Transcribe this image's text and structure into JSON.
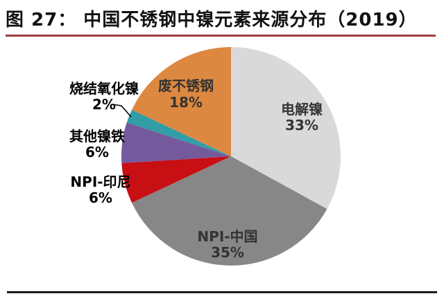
{
  "header": {
    "title": "图 27：  中国不锈钢中镍元素来源分布（2019）"
  },
  "colors": {
    "title_underline": "#9e3b3e",
    "bottom_rule": "#1a1a1a",
    "inside_label_text": "#333333",
    "outside_label_text": "#000000",
    "leader_line": "#000000",
    "background": "#ffffff"
  },
  "chart_data": {
    "type": "pie",
    "title": "中国不锈钢中镍元素来源分布（2019）",
    "start_angle_deg": 0,
    "direction": "clockwise",
    "legend_position": "none",
    "slices": [
      {
        "label": "电解镍",
        "value": 33,
        "pct_label": "33%",
        "color": "#d9d9d9",
        "label_placement": "inside"
      },
      {
        "label": "NPI-中国",
        "value": 35,
        "pct_label": "35%",
        "color": "#878787",
        "label_placement": "inside"
      },
      {
        "label": "NPI-印尼",
        "value": 6,
        "pct_label": "6%",
        "color": "#c80f14",
        "label_placement": "outside"
      },
      {
        "label": "其他镍铁",
        "value": 6,
        "pct_label": "6%",
        "color": "#745a9d",
        "label_placement": "outside"
      },
      {
        "label": "烧结氧化镍",
        "value": 2,
        "pct_label": "2%",
        "color": "#319ea7",
        "label_placement": "outside-leader"
      },
      {
        "label": "废不锈钢",
        "value": 18,
        "pct_label": "18%",
        "color": "#dd8840",
        "label_placement": "inside"
      }
    ]
  }
}
